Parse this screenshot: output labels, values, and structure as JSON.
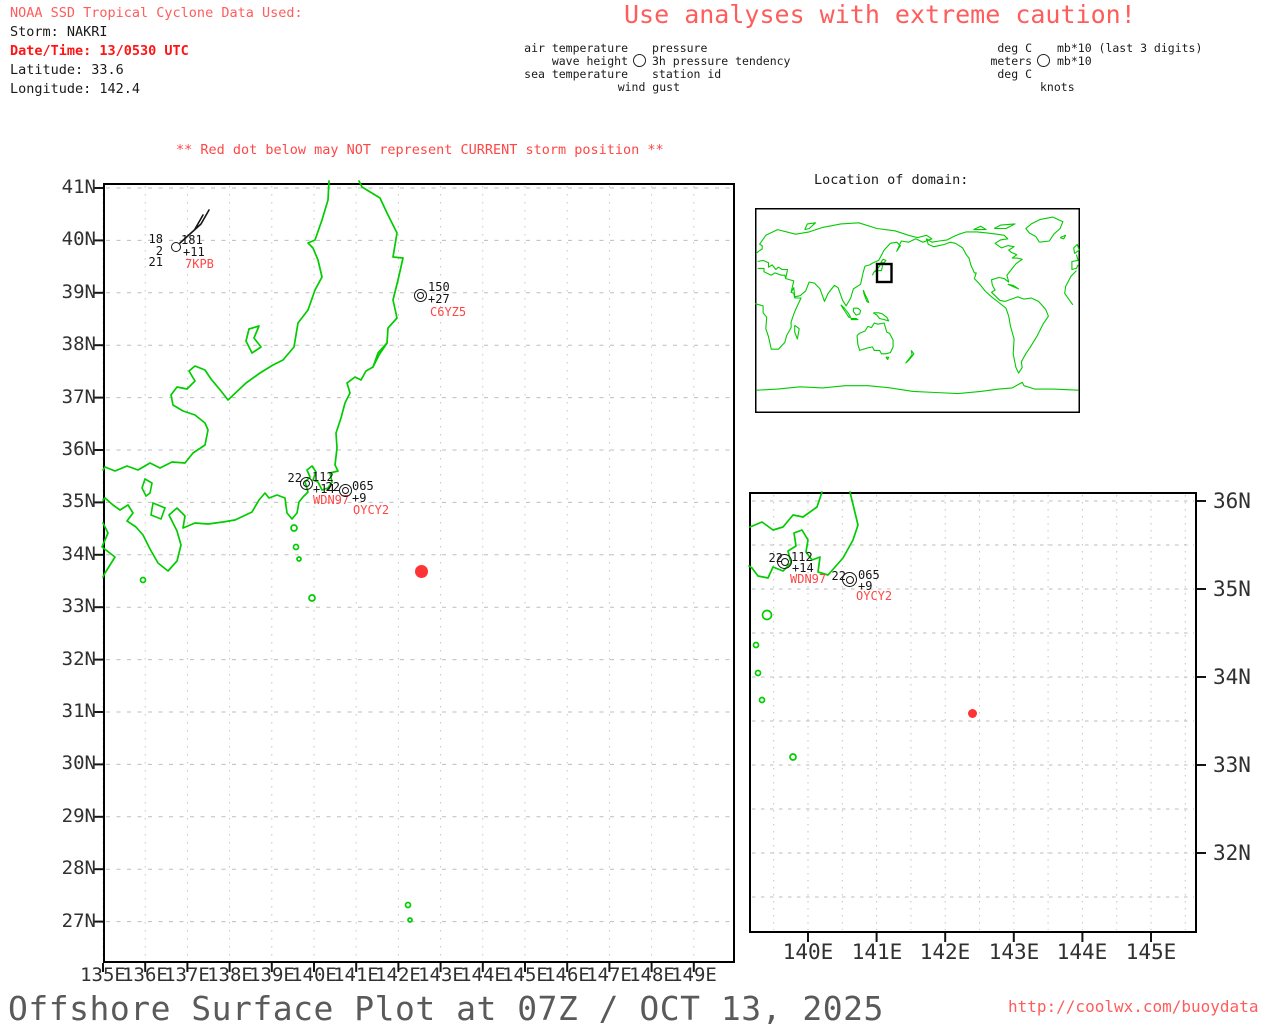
{
  "header": {
    "info_title": "NOAA SSD Tropical Cyclone Data Used:",
    "storm": "Storm: NAKRI",
    "datetime": "Date/Time: 13/0530 UTC",
    "latitude": "Latitude: 33.6",
    "longitude": "Longitude: 142.4",
    "caution": "Use analyses with extreme caution!"
  },
  "legend": {
    "air_label": "air temperature",
    "wave_label": "wave height",
    "sea_label": "sea temperature",
    "gust_label": "wind gust",
    "pressure_label": "pressure",
    "tendency_label": "3h pressure tendency",
    "station_label": "station id",
    "air_unit": "deg C",
    "wave_unit": "meters",
    "sea_unit": "deg C",
    "gust_unit": "knots",
    "pressure_unit": "mb*10 (last 3 digits)",
    "tendency_unit": "mb*10"
  },
  "warning": "** Red dot below may NOT represent CURRENT storm position **",
  "main_map": {
    "lat_labels": [
      "41N",
      "40N",
      "39N",
      "38N",
      "37N",
      "36N",
      "35N",
      "34N",
      "33N",
      "32N",
      "31N",
      "30N",
      "29N",
      "28N",
      "27N"
    ],
    "lon_labels": [
      "135E",
      "136E",
      "137E",
      "138E",
      "139E",
      "140E",
      "141E",
      "142E",
      "143E",
      "144E",
      "145E",
      "146E",
      "147E",
      "148E",
      "149E"
    ]
  },
  "inset_map": {
    "lat_labels": [
      "36N",
      "35N",
      "34N",
      "33N",
      "32N"
    ],
    "lon_labels": [
      "140E",
      "141E",
      "142E",
      "143E",
      "144E",
      "145E"
    ]
  },
  "domain_map": {
    "title": "Location of domain:"
  },
  "stations": [
    {
      "id": "7KPB",
      "air_temp": "18",
      "wave_height": "2",
      "sea_temp": "21",
      "pressure": "181",
      "tendency": "+11",
      "wind": "barb-from-ne"
    },
    {
      "id": "C6YZ5",
      "pressure": "150",
      "tendency": "+27",
      "wind": "calm"
    },
    {
      "id": "WDN97",
      "air_temp": "22",
      "pressure": "112",
      "tendency": "+14",
      "wind": "calm"
    },
    {
      "id": "OYCY2",
      "air_temp": "22",
      "pressure": "065",
      "tendency": "+9",
      "wind": "calm"
    }
  ],
  "storm_marker": {
    "lat": "33.6",
    "lon": "142.4"
  },
  "footer": {
    "title": "Offshore Surface Plot at 07Z / OCT 13, 2025",
    "url": "http://coolwx.com/buoydata"
  },
  "colors": {
    "coastline_green": "#00cc00",
    "alert_red": "#ff5c5c",
    "strong_red": "#ff1414",
    "station_red": "#ff4646",
    "storm_dot_red": "#ff3333",
    "grid_gray": "#c4c4c4",
    "axis_text": "#303030",
    "title_gray": "#5a5a5a"
  }
}
